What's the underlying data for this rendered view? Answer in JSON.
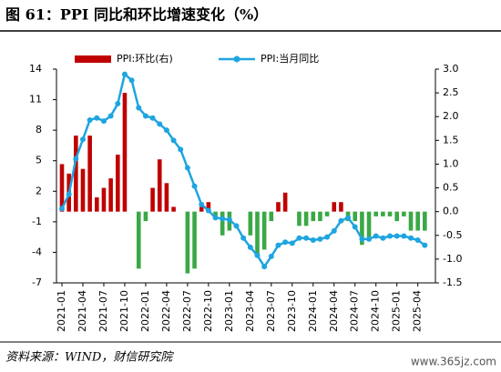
{
  "title": "图 61：PPI 同比和环比增速变化（%）",
  "source": "资料来源：WIND，财信研究院",
  "watermark": "www.365jz.com",
  "chart_data": {
    "type": "bar-line",
    "categories": [
      "2021-01",
      null,
      null,
      "2021-04",
      null,
      null,
      "2021-07",
      null,
      null,
      "2021-10",
      null,
      null,
      "2022-01",
      null,
      null,
      "2022-04",
      null,
      null,
      "2022-07",
      null,
      null,
      "2022-10",
      null,
      null,
      "2023-01",
      null,
      null,
      "2023-04",
      null,
      null,
      "2023-07",
      null,
      null,
      "2023-10",
      null,
      null,
      "2024-01",
      null,
      null,
      "2024-04",
      null,
      null,
      "2024-07",
      null,
      null,
      "2024-10",
      null,
      null,
      "2025-01",
      null,
      null,
      "2025-04",
      null
    ],
    "series": [
      {
        "name": "PPI:环比(右)",
        "type": "bar",
        "axis": "y2",
        "color": "#c00000",
        "negative_color": "#3aa845",
        "values": [
          1.0,
          0.8,
          1.6,
          0.9,
          1.6,
          0.3,
          0.5,
          0.7,
          1.2,
          2.5,
          0.0,
          -1.2,
          -0.2,
          0.5,
          1.1,
          0.6,
          0.1,
          0.0,
          -1.3,
          -1.2,
          0.1,
          0.2,
          -0.1,
          -0.5,
          -0.4,
          0.0,
          0.0,
          -0.5,
          -0.9,
          -0.8,
          -0.2,
          0.2,
          0.4,
          0.0,
          -0.3,
          -0.3,
          -0.2,
          -0.2,
          -0.1,
          0.2,
          0.2,
          -0.2,
          -0.2,
          -0.7,
          -0.6,
          -0.1,
          -0.1,
          -0.1,
          -0.2,
          -0.1,
          -0.4,
          -0.4,
          -0.4
        ]
      },
      {
        "name": "PPI:当月同比",
        "type": "line",
        "color": "#1ea5e0",
        "values": [
          0.3,
          1.7,
          5.2,
          7.1,
          9.0,
          9.2,
          8.9,
          9.4,
          10.6,
          13.5,
          12.9,
          10.2,
          9.4,
          9.2,
          8.6,
          8.0,
          7.0,
          6.1,
          4.3,
          2.5,
          0.7,
          0.1,
          -0.6,
          -0.7,
          -0.8,
          -1.4,
          -2.6,
          -3.5,
          -4.3,
          -5.4,
          -4.4,
          -3.3,
          -3.0,
          -3.1,
          -2.6,
          -2.6,
          -2.8,
          -2.7,
          -2.5,
          -1.9,
          -0.9,
          -0.6,
          -1.5,
          -2.7,
          -2.7,
          -2.4,
          -2.6,
          -2.4,
          -2.4,
          -2.4,
          -2.6,
          -2.8,
          -3.3
        ]
      }
    ],
    "ylim": [
      -7,
      14
    ],
    "yticks": [
      -7,
      -4,
      -1,
      2,
      5,
      8,
      11,
      14
    ],
    "y2lim": [
      -1.5,
      3
    ],
    "y2ticks": [
      -1.5,
      {
        "value": -1,
        "label": "-1.0"
      },
      -0.5,
      {
        "value": 0,
        "label": "0.0"
      },
      0.5,
      {
        "value": 1,
        "label": "1.0"
      },
      1.5,
      {
        "value": 2,
        "label": "2.0"
      },
      2.5,
      {
        "value": 3,
        "label": "3.0"
      }
    ],
    "legend": "top"
  }
}
